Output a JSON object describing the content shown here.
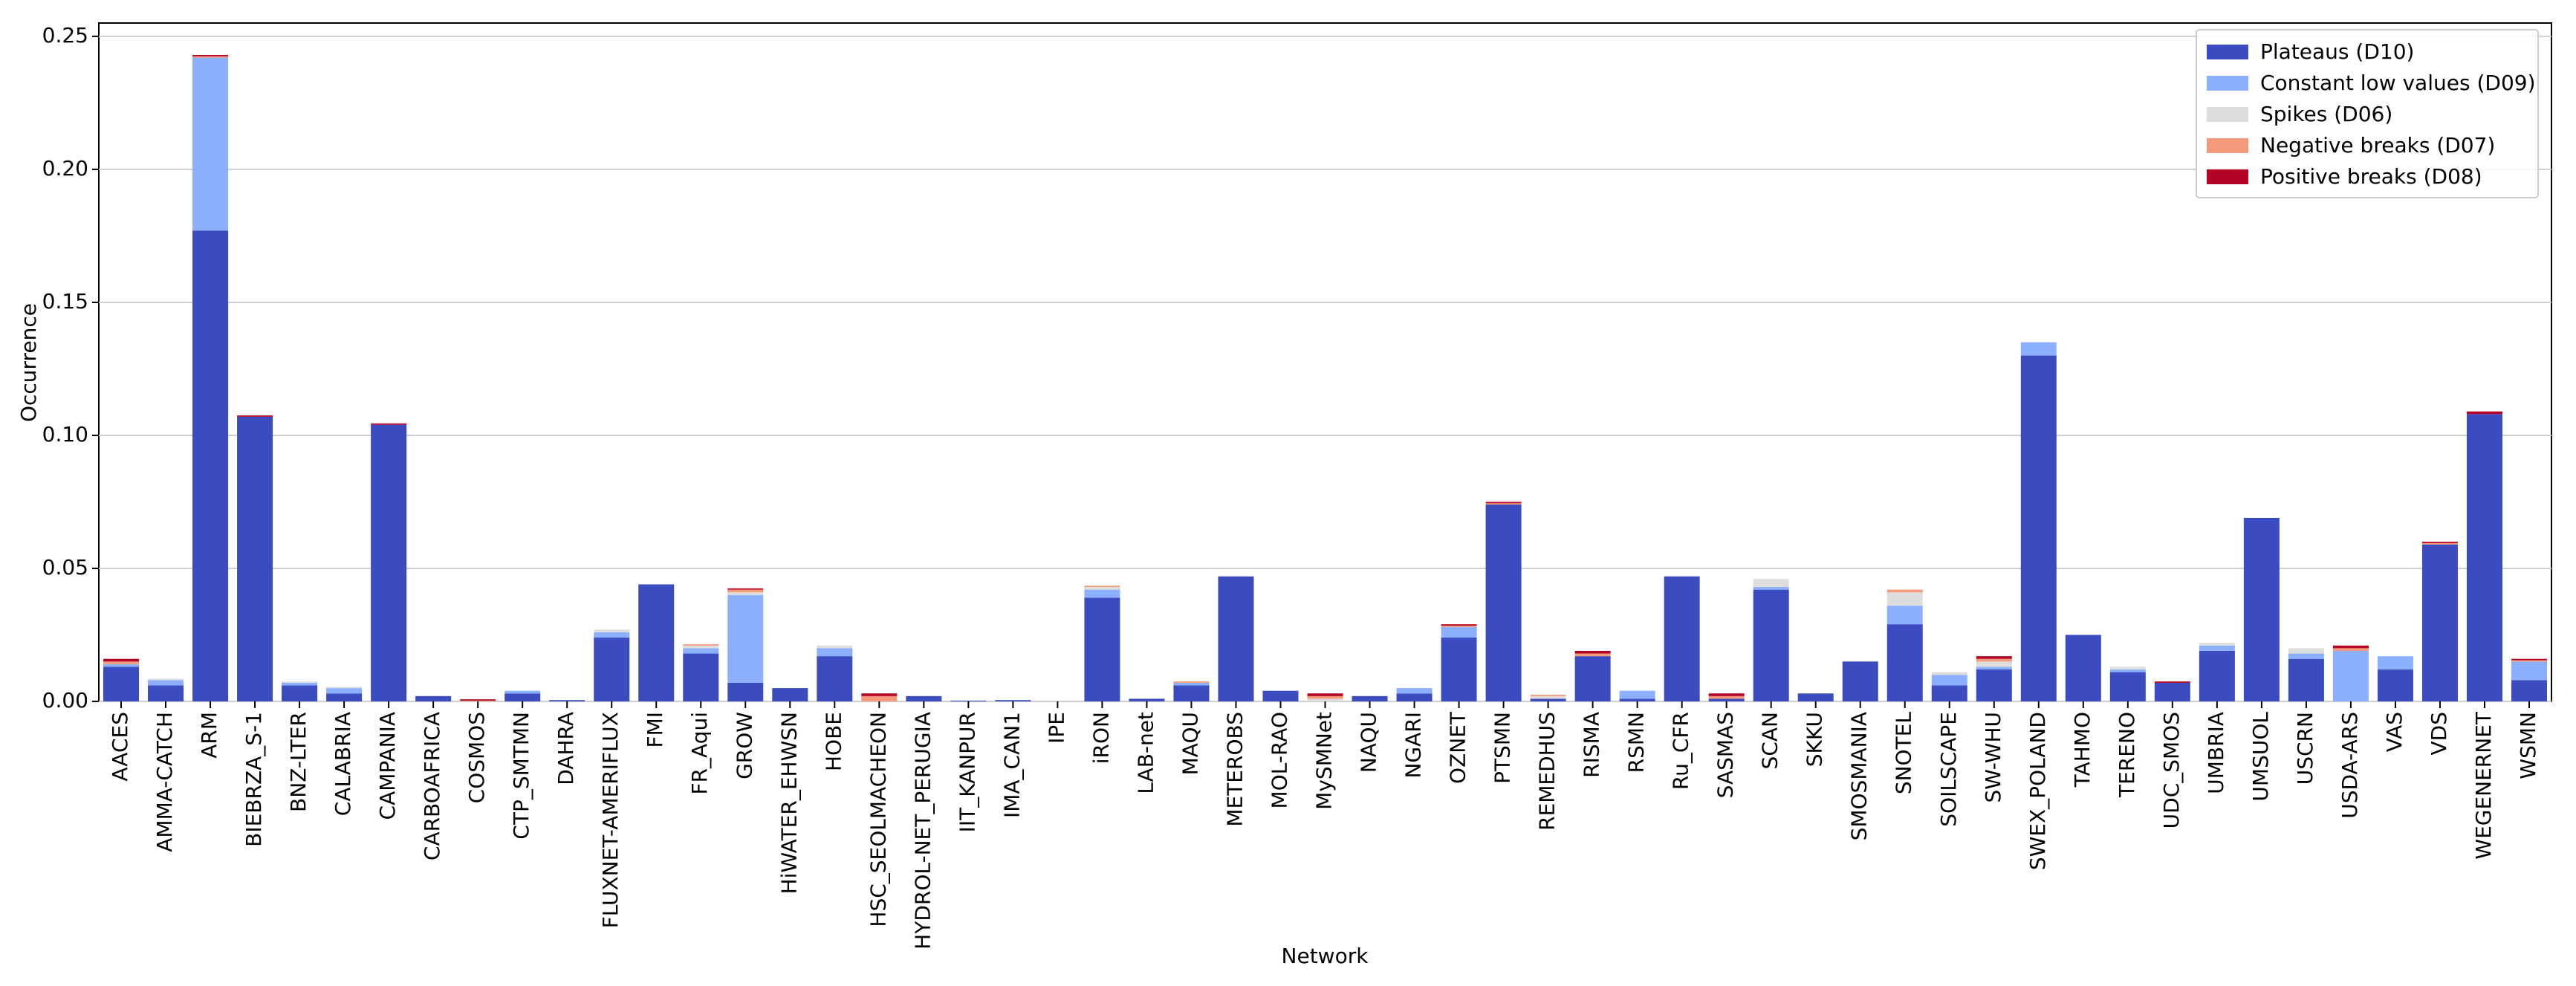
{
  "chart_data": {
    "type": "stacked_bar",
    "x_label": "Network",
    "y_label": "Occurrence",
    "categories": [
      "AACES",
      "AMMA-CATCH",
      "ARM",
      "BIEBRZA_S-1",
      "BNZ-LTER",
      "CALABRIA",
      "CAMPANIA",
      "CARBOAFRICA",
      "COSMOS",
      "CTP_SMTMN",
      "DAHRA",
      "FLUXNET-AMERIFLUX",
      "FMI",
      "FR_Aqui",
      "GROW",
      "HiWATER_EHWSN",
      "HOBE",
      "HSC_SEOLMACHEON",
      "HYDROL-NET_PERUGIA",
      "IIT_KANPUR",
      "IMA_CAN1",
      "IPE",
      "iRON",
      "LAB-net",
      "MAQU",
      "METEROBS",
      "MOL-RAO",
      "MySMNet",
      "NAQU",
      "NGARI",
      "OZNET",
      "PTSMN",
      "REMEDHUS",
      "RISMA",
      "RSMN",
      "Ru_CFR",
      "SASMAS",
      "SCAN",
      "SKKU",
      "SMOSMANIA",
      "SNOTEL",
      "SOILSCAPE",
      "SW-WHU",
      "SWEX_POLAND",
      "TAHMO",
      "TERENO",
      "UDC_SMOS",
      "UMBRIA",
      "UMSUOL",
      "USCRN",
      "USDA-ARS",
      "VAS",
      "VDS",
      "WEGENERNET",
      "WSMN"
    ],
    "series": [
      {
        "name": "Plateaus (D10)",
        "color": "#3b4cc0",
        "values": [
          0.013,
          0.006,
          0.177,
          0.107,
          0.006,
          0.003,
          0.104,
          0.002,
          0,
          0.003,
          0.0005,
          0.024,
          0.044,
          0.018,
          0.007,
          0.005,
          0.017,
          0,
          0.002,
          0.0003,
          0.0005,
          0,
          0.039,
          0.001,
          0.006,
          0.047,
          0.004,
          0,
          0.002,
          0.003,
          0.024,
          0.074,
          0.001,
          0.017,
          0.001,
          0.047,
          0.001,
          0.042,
          0.003,
          0.015,
          0.029,
          0.006,
          0.012,
          0.13,
          0.025,
          0.011,
          0.007,
          0.019,
          0.069,
          0.016,
          0,
          0.012,
          0.059,
          0.108,
          0.008
        ]
      },
      {
        "name": "Constant low values (D09)",
        "color": "#8db0fe",
        "values": [
          0.001,
          0.002,
          0.065,
          0,
          0.001,
          0.002,
          0,
          0,
          0,
          0.001,
          0,
          0.002,
          0,
          0.002,
          0.033,
          0,
          0.003,
          0,
          0,
          0,
          0,
          0,
          0.003,
          0,
          0.001,
          0,
          0,
          0,
          0,
          0.002,
          0.004,
          0,
          0,
          0,
          0.003,
          0,
          0,
          0.001,
          0,
          0,
          0.007,
          0.004,
          0.001,
          0.005,
          0,
          0.001,
          0,
          0.002,
          0,
          0.002,
          0.019,
          0.005,
          0,
          0,
          0.007
        ]
      },
      {
        "name": "Spikes (D06)",
        "color": "#dddddd",
        "values": [
          0,
          0.0005,
          0,
          0,
          0.0005,
          0.0005,
          0,
          0,
          0,
          0,
          0,
          0.001,
          0,
          0.001,
          0.001,
          0,
          0.001,
          0,
          0,
          0,
          0,
          0,
          0.001,
          0,
          0,
          0,
          0,
          0.001,
          0,
          0,
          0,
          0,
          0.001,
          0,
          0,
          0,
          0,
          0.003,
          0,
          0,
          0.005,
          0.001,
          0.002,
          0,
          0,
          0.001,
          0,
          0.001,
          0,
          0.002,
          0,
          0,
          0,
          0,
          0
        ]
      },
      {
        "name": "Negative breaks (D07)",
        "color": "#f49a7b",
        "values": [
          0.001,
          0,
          0.0005,
          0,
          0,
          0,
          0,
          0,
          0.0003,
          0,
          0,
          0,
          0,
          0.0005,
          0.001,
          0,
          0,
          0.002,
          0,
          0,
          0,
          0,
          0.0005,
          0,
          0.0005,
          0,
          0,
          0.001,
          0,
          0,
          0.0005,
          0.0005,
          0.0005,
          0.001,
          0,
          0,
          0.001,
          0,
          0,
          0,
          0.001,
          0,
          0.001,
          0,
          0,
          0,
          0,
          0,
          0,
          0,
          0.001,
          0,
          0.0005,
          0,
          0.0005
        ]
      },
      {
        "name": "Positive breaks (D08)",
        "color": "#b40426",
        "values": [
          0.001,
          0,
          0.0005,
          0.0005,
          0,
          0,
          0.0005,
          0,
          0.0005,
          0,
          0,
          0,
          0,
          0,
          0.0005,
          0,
          0,
          0.001,
          0,
          0,
          0,
          0,
          0,
          0,
          0,
          0,
          0,
          0.001,
          0,
          0,
          0.0005,
          0.0005,
          0,
          0.001,
          0,
          0,
          0.001,
          0,
          0,
          0,
          0,
          0,
          0.001,
          0,
          0,
          0,
          0.0005,
          0,
          0,
          0,
          0.001,
          0,
          0.0005,
          0.001,
          0.0005
        ]
      }
    ],
    "ylim": [
      0,
      0.255
    ],
    "yticks": [
      {
        "value": 0,
        "label": "0.00"
      },
      {
        "value": 0.05,
        "label": "0.05"
      },
      {
        "value": 0.1,
        "label": "0.10"
      },
      {
        "value": 0.15,
        "label": "0.15"
      },
      {
        "value": 0.2,
        "label": "0.20"
      },
      {
        "value": 0.25,
        "label": "0.25"
      }
    ],
    "grid": true,
    "legend": "upper right"
  }
}
